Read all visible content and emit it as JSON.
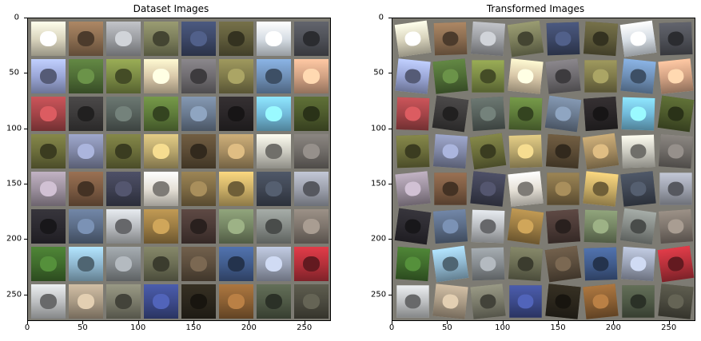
{
  "figure": {
    "panels": [
      {
        "title": "Dataset Images",
        "x_ticks": [
          "0",
          "50",
          "100",
          "150",
          "200",
          "250"
        ],
        "y_ticks": [
          "0",
          "50",
          "100",
          "150",
          "200",
          "250"
        ],
        "grid_tiles": [
          [
            "#d9d4bd",
            "#8a6c50",
            "#9b9da1",
            "#7b7d5b",
            "#3c4766",
            "#5e5a3a",
            "#d6dde4",
            "#4e5057"
          ],
          [
            "#9aa6d6",
            "#4f6d36",
            "#7b8a45",
            "#d9c8a9",
            "#6f6c70",
            "#7f7a4b",
            "#6f90b7",
            "#d1a183"
          ],
          [
            "#a34448",
            "#3c3a3a",
            "#56605b",
            "#5e7b3a",
            "#6a7a8f",
            "#2a2628",
            "#72b9d9",
            "#4d5a2c"
          ],
          [
            "#6b6d3b",
            "#7f86a4",
            "#6a6d3a",
            "#b6a46b",
            "#5b4b35",
            "#a58c61",
            "#cbcac0",
            "#6f6b67"
          ],
          [
            "#9b8f9d",
            "#7b5a42",
            "#3e4052",
            "#e5e0d6",
            "#7d6a44",
            "#c9ad66",
            "#3f4653",
            "#9ca0ac"
          ],
          [
            "#2c2a30",
            "#5b6c86",
            "#b9bcc0",
            "#9a7b43",
            "#4b3a36",
            "#748463",
            "#858a86",
            "#7d746c"
          ],
          [
            "#3f6b2c",
            "#8fb7cf",
            "#858a8e",
            "#6b6d54",
            "#5b4d3d",
            "#415c8c",
            "#9aa2b5",
            "#b4303a"
          ],
          [
            "#bdbfc1",
            "#a89984",
            "#7a7a6a",
            "#3c4a8a",
            "#2b261c",
            "#8a5f33",
            "#4f5946",
            "#4b4a3f"
          ]
        ]
      },
      {
        "title": "Transformed Images",
        "x_ticks": [
          "0",
          "50",
          "100",
          "150",
          "200",
          "250"
        ],
        "y_ticks": [
          "0",
          "50",
          "100",
          "150",
          "200",
          "250"
        ],
        "grid_tiles": [
          [
            "#d9d4bd",
            "#8a6c50",
            "#9b9da1",
            "#7b7d5b",
            "#3c4766",
            "#5e5a3a",
            "#d6dde4",
            "#4e5057"
          ],
          [
            "#9aa6d6",
            "#4f6d36",
            "#7b8a45",
            "#d9c8a9",
            "#6f6c70",
            "#7f7a4b",
            "#6f90b7",
            "#d1a183"
          ],
          [
            "#a34448",
            "#3c3a3a",
            "#56605b",
            "#5e7b3a",
            "#6a7a8f",
            "#2a2628",
            "#72b9d9",
            "#4d5a2c"
          ],
          [
            "#6b6d3b",
            "#7f86a4",
            "#6a6d3a",
            "#b6a46b",
            "#5b4b35",
            "#a58c61",
            "#cbcac0",
            "#6f6b67"
          ],
          [
            "#9b8f9d",
            "#7b5a42",
            "#3e4052",
            "#e5e0d6",
            "#7d6a44",
            "#c9ad66",
            "#3f4653",
            "#9ca0ac"
          ],
          [
            "#2c2a30",
            "#5b6c86",
            "#b9bcc0",
            "#9a7b43",
            "#4b3a36",
            "#748463",
            "#858a86",
            "#7d746c"
          ],
          [
            "#3f6b2c",
            "#8fb7cf",
            "#858a8e",
            "#6b6d54",
            "#5b4d3d",
            "#415c8c",
            "#9aa2b5",
            "#b4303a"
          ],
          [
            "#bdbfc1",
            "#a89984",
            "#7a7a6a",
            "#3c4a8a",
            "#2b261c",
            "#8a5f33",
            "#4f5946",
            "#4b4a3f"
          ]
        ]
      }
    ],
    "frame_color": "#7d7b73"
  }
}
